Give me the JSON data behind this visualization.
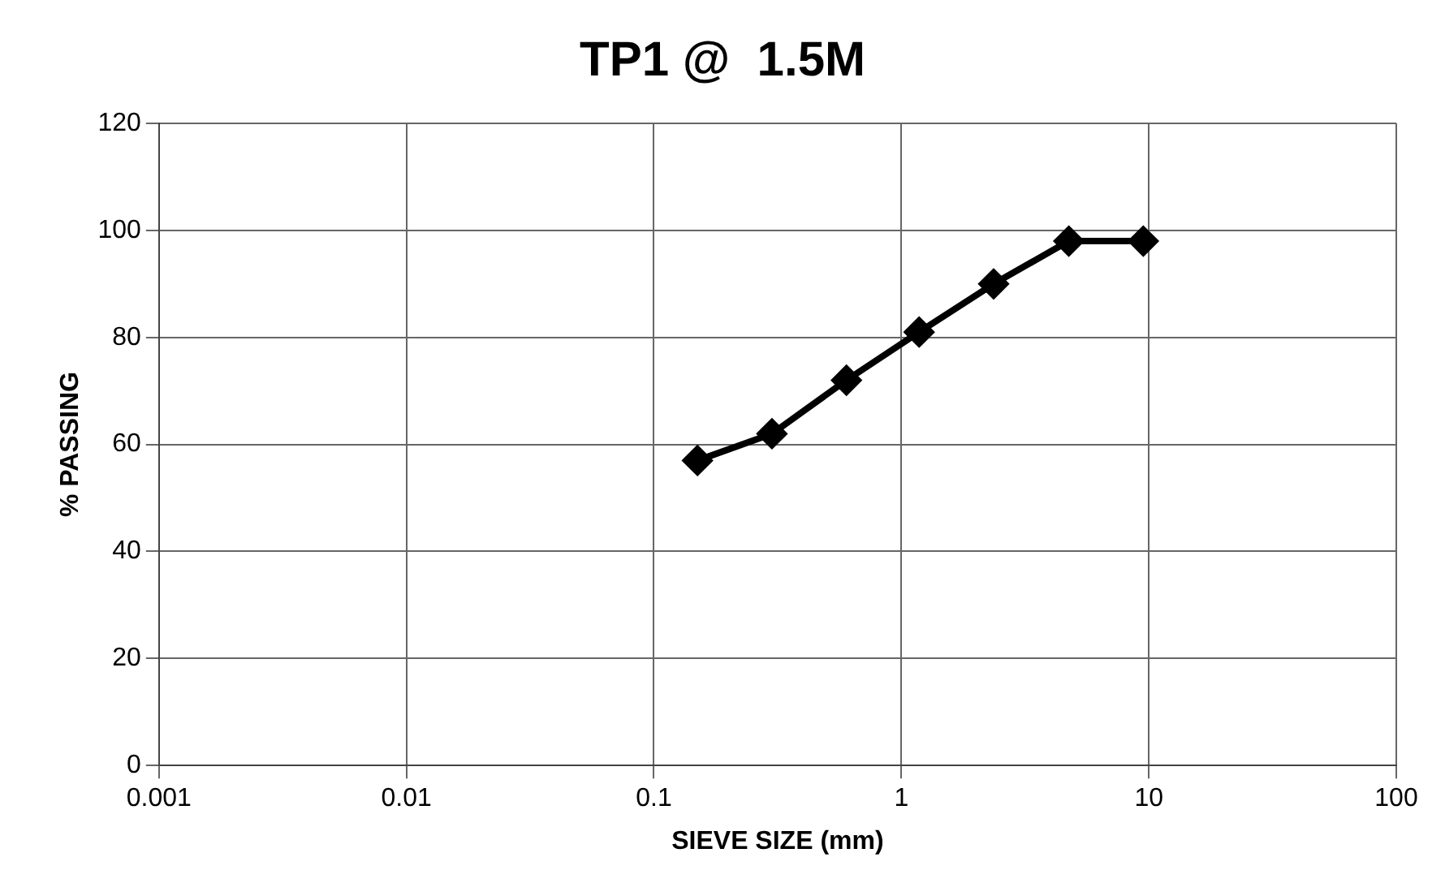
{
  "chart_data": {
    "type": "line",
    "title": "TP1 @  1.5M",
    "xlabel": "SIEVE SIZE (mm)",
    "ylabel": "% PASSING",
    "x": [
      0.15,
      0.3,
      0.6,
      1.18,
      2.36,
      4.75,
      9.5
    ],
    "series": [
      {
        "color": "#000000",
        "values": [
          57,
          62,
          72,
          81,
          90,
          98,
          98
        ]
      }
    ],
    "log": "x",
    "xlim": [
      0.001,
      100
    ],
    "xticks": [
      0.001,
      0.01,
      0.1,
      1,
      10,
      100
    ],
    "ylim": [
      0,
      120
    ],
    "yticks": [
      0,
      20,
      40,
      60,
      80,
      100,
      120
    ],
    "grid": true,
    "legend": false,
    "marker": "diamond",
    "line_style": "solid"
  }
}
